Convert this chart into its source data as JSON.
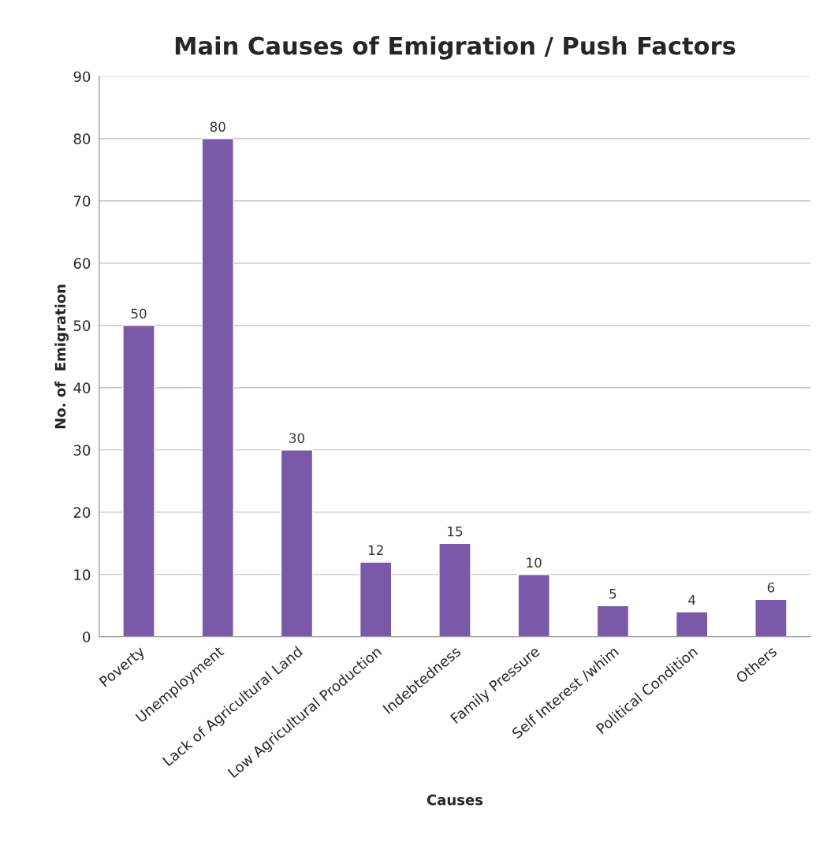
{
  "chart_data": {
    "type": "bar",
    "title": "Main Causes of Emigration / Push Factors",
    "xlabel": "Causes",
    "ylabel": "No. of  Emigration",
    "categories": [
      "Poverty",
      "Unemployment",
      "Lack of Agricultural Land",
      "Low Agricultural Production",
      "Indebtedness",
      "Family Pressure",
      "Self Interest /whim",
      "Political Condition",
      "Others"
    ],
    "values": [
      50,
      80,
      30,
      12,
      15,
      10,
      5,
      4,
      6
    ],
    "color": "#7a5aa8",
    "ylim": [
      0,
      90
    ],
    "yticks": [
      0,
      10,
      20,
      30,
      40,
      50,
      60,
      70,
      80,
      90
    ],
    "grid": "y",
    "data_labels": true
  }
}
